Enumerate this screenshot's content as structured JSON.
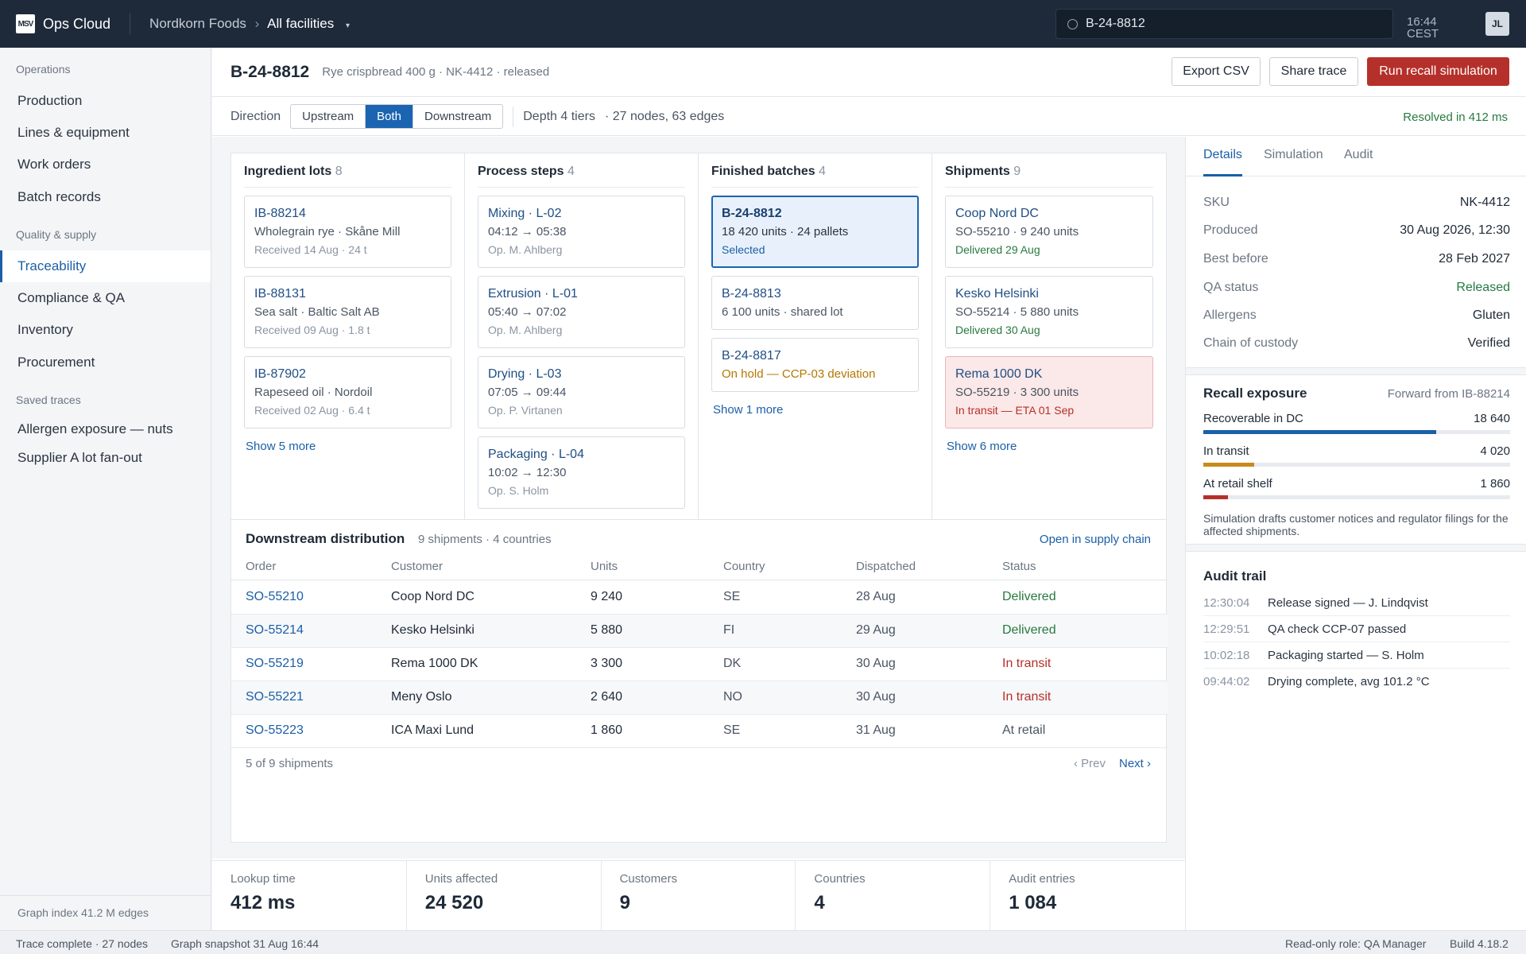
{
  "topbar": {
    "logo": "MSV",
    "app_name": "Ops Cloud",
    "org": "Nordkorn Foods",
    "crumb_sep": "›",
    "facility": "All facilities",
    "facility_caret": "▾",
    "search_value": "B-24-8812",
    "time": "16:44",
    "tz": "CEST",
    "avatar": "JL"
  },
  "sidebar": {
    "sections": [
      {
        "label": "Operations",
        "items": [
          "Production",
          "Lines & equipment",
          "Work orders",
          "Batch records"
        ]
      },
      {
        "label": "Quality & supply",
        "items": [
          "Traceability",
          "Compliance & QA",
          "Inventory",
          "Procurement"
        ]
      },
      {
        "label": "Saved traces",
        "items": [
          "Allergen exposure — nuts",
          "Supplier A lot fan-out"
        ]
      }
    ],
    "active": "Traceability",
    "footer": "Graph index 41.2 M edges"
  },
  "header": {
    "batch_id": "B-24-8812",
    "meta": "Rye crispbread 400 g · NK-4412 · released",
    "export_label": "Export CSV",
    "share_label": "Share trace",
    "run_label": "Run recall simulation"
  },
  "filter": {
    "direction_label": "Direction",
    "options": [
      "Upstream",
      "Both",
      "Downstream"
    ],
    "selected": "Both",
    "depth": "Depth 4 tiers",
    "stats": "· 27 nodes, 63 edges",
    "resolved": "Resolved in 412 ms"
  },
  "graph": {
    "ingredients": {
      "title": "Ingredient lots",
      "count": "8",
      "nodes": [
        {
          "id": "IB-88214",
          "desc": "Wholegrain rye · Skåne Mill",
          "meta": "Received 14 Aug · 24 t"
        },
        {
          "id": "IB-88131",
          "desc": "Sea salt · Baltic Salt AB",
          "meta": "Received 09 Aug · 1.8 t"
        },
        {
          "id": "IB-87902",
          "desc": "Rapeseed oil · Nordoil",
          "meta": "Received 02 Aug · 6.4 t"
        }
      ],
      "more": "Show 5 more"
    },
    "process": {
      "title": "Process steps",
      "count": "4",
      "nodes": [
        {
          "id": "Mixing · L-02",
          "desc": "04:12 → 05:38",
          "meta": "Op. M. Ahlberg"
        },
        {
          "id": "Extrusion · L-01",
          "desc": "05:40 → 07:02",
          "meta": "Op. M. Ahlberg"
        },
        {
          "id": "Drying · L-03",
          "desc": "07:05 → 09:44",
          "meta": "Op. P. Virtanen"
        },
        {
          "id": "Packaging · L-04",
          "desc": "10:02 → 12:30",
          "meta": "Op. S. Holm"
        }
      ]
    },
    "batches": {
      "title": "Finished batches",
      "count": "4",
      "selected": {
        "id": "B-24-8812",
        "desc": "18 420 units · 24 pallets",
        "meta": "Selected"
      },
      "other": {
        "id": "B-24-8813",
        "desc": "6 100 units · shared lot"
      },
      "hold": {
        "id": "B-24-8817",
        "desc": "On hold — CCP-03 deviation"
      },
      "more": "Show 1 more"
    },
    "shipments": {
      "title": "Shipments",
      "count": "9",
      "nodes": [
        {
          "id": "Coop Nord DC",
          "desc": "SO-55210 · 9 240 units",
          "meta": "Delivered 29 Aug"
        },
        {
          "id": "Kesko Helsinki",
          "desc": "SO-55214 · 5 880 units",
          "meta": "Delivered 30 Aug"
        },
        {
          "id": "Rema 1000 DK",
          "desc": "SO-55219 · 3 300 units",
          "meta": "In transit — ETA 01 Sep"
        }
      ],
      "more": "Show 6 more"
    }
  },
  "distribution": {
    "title": "Downstream distribution",
    "meta": "9 shipments · 4 countries",
    "link": "Open in supply chain",
    "columns": [
      "Order",
      "Customer",
      "Units",
      "Country",
      "Dispatched",
      "Status"
    ],
    "rows": [
      [
        "SO-55210",
        "Coop Nord DC",
        "9 240",
        "SE",
        "28 Aug",
        "Delivered"
      ],
      [
        "SO-55214",
        "Kesko Helsinki",
        "5 880",
        "FI",
        "29 Aug",
        "Delivered"
      ],
      [
        "SO-55219",
        "Rema 1000 DK",
        "3 300",
        "DK",
        "30 Aug",
        "In transit"
      ],
      [
        "SO-55221",
        "Meny Oslo",
        "2 640",
        "NO",
        "30 Aug",
        "In transit"
      ],
      [
        "SO-55223",
        "ICA Maxi Lund",
        "1 860",
        "SE",
        "31 Aug",
        "At retail"
      ]
    ],
    "pager_info": "5 of 9 shipments",
    "prev": "‹ Prev",
    "next": "Next ›"
  },
  "kpis": [
    {
      "label": "Lookup time",
      "value": "412 ms"
    },
    {
      "label": "Units affected",
      "value": "24 520"
    },
    {
      "label": "Customers",
      "value": "9"
    },
    {
      "label": "Countries",
      "value": "4"
    },
    {
      "label": "Audit entries",
      "value": "1 084"
    }
  ],
  "details": {
    "tabs": [
      "Details",
      "Simulation",
      "Audit"
    ],
    "fields": [
      {
        "k": "SKU",
        "v": "NK-4412"
      },
      {
        "k": "Produced",
        "v": "30 Aug 2026, 12:30"
      },
      {
        "k": "Best before",
        "v": "28 Feb 2027"
      },
      {
        "k": "QA status",
        "v": "Released"
      },
      {
        "k": "Allergens",
        "v": "Gluten"
      },
      {
        "k": "Chain of custody",
        "v": "Verified"
      }
    ]
  },
  "exposure": {
    "title": "Recall exposure",
    "sub": "Forward from IB-88214",
    "rows": [
      {
        "label": "Recoverable in DC",
        "value": "18 640",
        "fraction": 0.76,
        "color": "#1b5fa8"
      },
      {
        "label": "In transit",
        "value": "4 020",
        "fraction": 0.165,
        "color": "#c98a1c"
      },
      {
        "label": "At retail shelf",
        "value": "1 860",
        "fraction": 0.08,
        "color": "#b5302a"
      }
    ],
    "note": "Simulation drafts customer notices and regulator filings for the affected shipments."
  },
  "audit": {
    "title": "Audit trail",
    "entries": [
      {
        "time": "12:30:04",
        "event": "Release signed — J. Lindqvist"
      },
      {
        "time": "12:29:51",
        "event": "QA check CCP-07 passed"
      },
      {
        "time": "10:02:18",
        "event": "Packaging started — S. Holm"
      },
      {
        "time": "09:44:02",
        "event": "Drying complete, avg 101.2 °C"
      }
    ]
  },
  "statusbar": {
    "left1": "Trace complete · 27 nodes",
    "left2": "Graph snapshot 31 Aug 16:44",
    "role": "Read-only role: QA Manager",
    "build": "Build 4.18.2"
  }
}
